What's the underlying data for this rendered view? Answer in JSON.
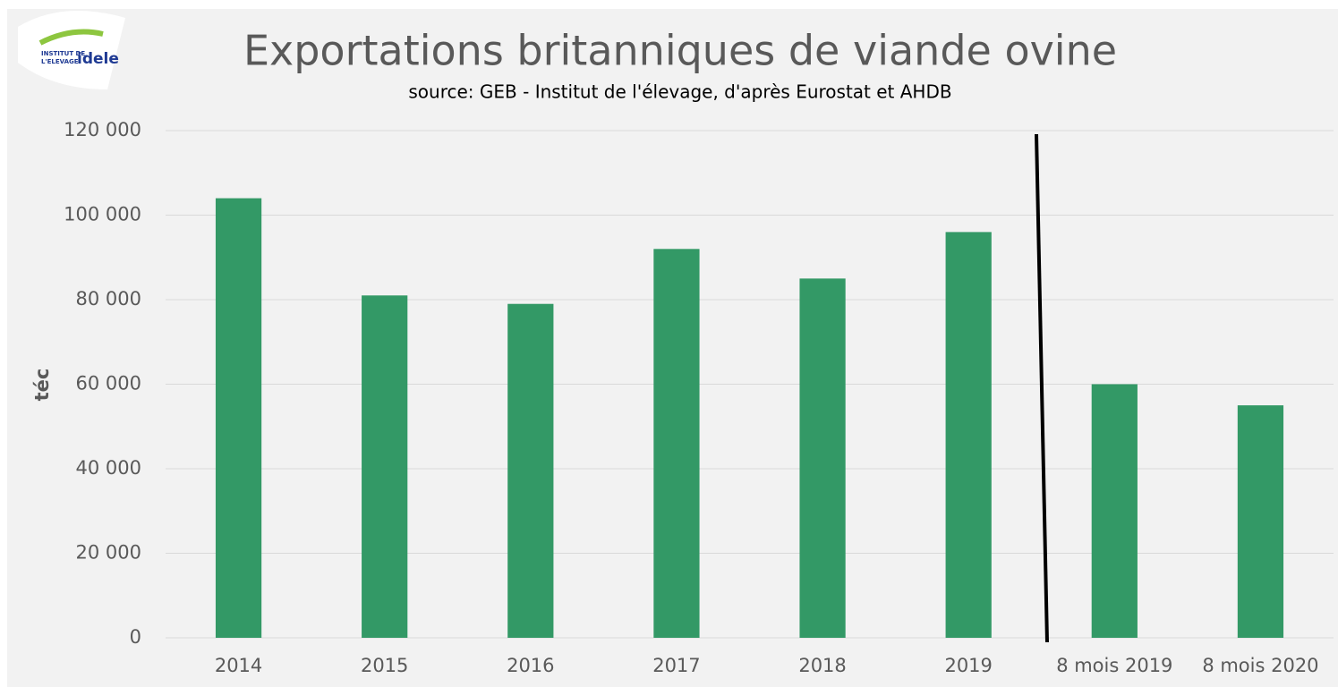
{
  "logo": {
    "line1": "INSTITUT DE",
    "line2": "L'ELEVAGE",
    "brand": "idele"
  },
  "chart_data": {
    "type": "bar",
    "title": "Exportations britanniques de viande ovine",
    "subtitle": "source: GEB - Institut de l'élevage, d'après Eurostat et AHDB",
    "y_label": "téc",
    "categories": [
      "2014",
      "2015",
      "2016",
      "2017",
      "2018",
      "2019",
      "8 mois 2019",
      "8 mois 2020"
    ],
    "values": [
      104000,
      81000,
      79000,
      92000,
      85000,
      96000,
      60000,
      55000
    ],
    "color": "#339966",
    "ylim": [
      0,
      120000
    ],
    "yticks": [
      0,
      {
        "value": 20000,
        "label": "20 000"
      },
      {
        "value": 40000,
        "label": "40 000"
      },
      {
        "value": 60000,
        "label": "60 000"
      },
      {
        "value": 80000,
        "label": "80 000"
      },
      {
        "value": 100000,
        "label": "100 000"
      },
      {
        "value": 120000,
        "label": "120 000"
      }
    ],
    "grid": true
  }
}
